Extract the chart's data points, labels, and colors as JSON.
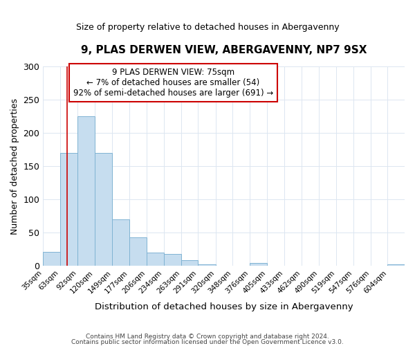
{
  "title": "9, PLAS DERWEN VIEW, ABERGAVENNY, NP7 9SX",
  "subtitle": "Size of property relative to detached houses in Abergavenny",
  "xlabel": "Distribution of detached houses by size in Abergavenny",
  "ylabel": "Number of detached properties",
  "footer_line1": "Contains HM Land Registry data © Crown copyright and database right 2024.",
  "footer_line2": "Contains public sector information licensed under the Open Government Licence v3.0.",
  "bin_labels": [
    "35sqm",
    "63sqm",
    "92sqm",
    "120sqm",
    "149sqm",
    "177sqm",
    "206sqm",
    "234sqm",
    "263sqm",
    "291sqm",
    "320sqm",
    "348sqm",
    "376sqm",
    "405sqm",
    "433sqm",
    "462sqm",
    "490sqm",
    "519sqm",
    "547sqm",
    "576sqm",
    "604sqm"
  ],
  "bar_heights": [
    21,
    170,
    225,
    170,
    70,
    43,
    20,
    18,
    8,
    2,
    0,
    0,
    4,
    0,
    0,
    0,
    0,
    0,
    0,
    0,
    2
  ],
  "bar_color": "#c6ddef",
  "bar_edge_color": "#7fb3d3",
  "reference_line_x": 75,
  "reference_line_color": "#cc0000",
  "ylim": [
    0,
    300
  ],
  "yticks": [
    0,
    50,
    100,
    150,
    200,
    250,
    300
  ],
  "annotation_title": "9 PLAS DERWEN VIEW: 75sqm",
  "annotation_line1": "← 7% of detached houses are smaller (54)",
  "annotation_line2": "92% of semi-detached houses are larger (691) →",
  "annotation_box_color": "#cc0000",
  "bin_edges_vals": [
    35,
    63,
    92,
    120,
    149,
    177,
    206,
    234,
    263,
    291,
    320,
    348,
    376,
    405,
    433,
    462,
    490,
    519,
    547,
    576,
    604
  ],
  "xmin": 35,
  "xmax": 632,
  "grid_color": "#dce6f1"
}
